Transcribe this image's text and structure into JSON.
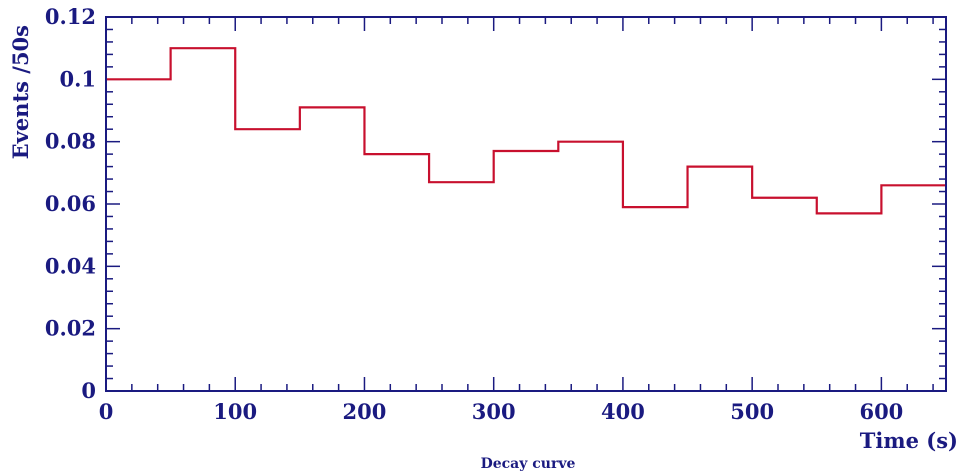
{
  "chart_data": {
    "type": "histogram",
    "title": "",
    "caption": "Decay curve",
    "xlabel": "Time (s)",
    "ylabel": "Events /50s",
    "xlim": [
      0,
      650
    ],
    "ylim": [
      0,
      0.12
    ],
    "bin_width": 50,
    "bin_edges": [
      0,
      50,
      100,
      150,
      200,
      250,
      300,
      350,
      400,
      450,
      500,
      550,
      600,
      650
    ],
    "values": [
      0.1,
      0.11,
      0.084,
      0.091,
      0.076,
      0.067,
      0.077,
      0.08,
      0.059,
      0.072,
      0.062,
      0.057,
      0.066
    ],
    "x_ticks": [
      0,
      100,
      200,
      300,
      400,
      500,
      600
    ],
    "x_tick_labels": [
      "0",
      "100",
      "200",
      "300",
      "400",
      "500",
      "600"
    ],
    "y_ticks": [
      0,
      0.02,
      0.04,
      0.06,
      0.08,
      0.1,
      0.12
    ],
    "y_tick_labels": [
      "0",
      "0.02",
      "0.04",
      "0.06",
      "0.08",
      "0.1",
      "0.12"
    ],
    "grid": false,
    "legend": "none",
    "colors": {
      "line": "#c8102e",
      "axis": "#1a1a80",
      "text": "#1a1a80",
      "background": "#ffffff"
    }
  }
}
